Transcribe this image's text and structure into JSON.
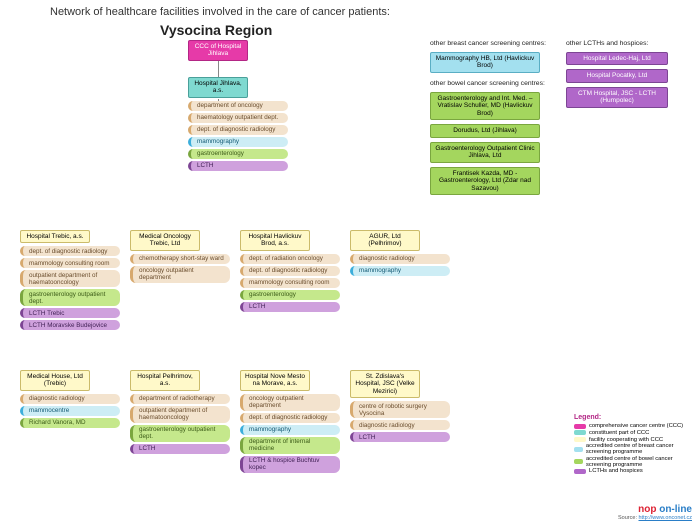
{
  "title": "Network of healthcare facilities involved in the care of cancer patients:",
  "region": "Vysocina Region",
  "colors": {
    "pink": "#e63aa8",
    "teal": "#7fd9d0",
    "yellow": "#fff9c9",
    "tan": "#f3e3ce",
    "blue": "#a3e0ef",
    "green": "#a4d65e",
    "purple": "#b067c9",
    "white": "#ffffff"
  },
  "ccc": {
    "label": "CCC of Hospital Jihlava"
  },
  "hospital_jihlava": {
    "label": "Hospital Jihlava, a.s.",
    "depts": [
      {
        "t": "department of oncology",
        "c": "d-tan"
      },
      {
        "t": "haematology outpatient dept.",
        "c": "d-tan"
      },
      {
        "t": "dept. of diagnostic radiology",
        "c": "d-tan"
      },
      {
        "t": "mammography",
        "c": "d-blue"
      },
      {
        "t": "gastroenterology",
        "c": "d-green"
      },
      {
        "t": "LCTH",
        "c": "d-purple"
      }
    ]
  },
  "row2": [
    {
      "name": "Hospital Trebic, a.s.",
      "c": "yellow",
      "depts": [
        {
          "t": "dept. of diagnostic radiology",
          "c": "d-tan"
        },
        {
          "t": "mammology consulting room",
          "c": "d-tan"
        },
        {
          "t": "outpatient department of haematooncology",
          "c": "d-tan"
        },
        {
          "t": "gastroenterology outpatient dept.",
          "c": "d-green"
        },
        {
          "t": "LCTH Trebic",
          "c": "d-purple"
        },
        {
          "t": "LCTH Moravske Budejovice",
          "c": "d-purple"
        }
      ]
    },
    {
      "name": "Medical Oncology Trebic, Ltd",
      "c": "yellow",
      "depts": [
        {
          "t": "chemotherapy short-stay ward",
          "c": "d-tan"
        },
        {
          "t": "oncology outpatient department",
          "c": "d-tan"
        }
      ]
    },
    {
      "name": "Hospital Havlickuv Brod, a.s.",
      "c": "yellow",
      "depts": [
        {
          "t": "dept. of radiation oncology",
          "c": "d-tan"
        },
        {
          "t": "dept. of diagnostic radiology",
          "c": "d-tan"
        },
        {
          "t": "mammology consulting room",
          "c": "d-tan"
        },
        {
          "t": "gastroenterology",
          "c": "d-green"
        },
        {
          "t": "LCTH",
          "c": "d-purple"
        }
      ]
    },
    {
      "name": "AGUR, Ltd (Pelhrimov)",
      "c": "yellow",
      "depts": [
        {
          "t": "diagnostic radiology",
          "c": "d-tan"
        },
        {
          "t": "mammography",
          "c": "d-blue"
        }
      ]
    }
  ],
  "row3": [
    {
      "name": "Medical House, Ltd (Trebic)",
      "c": "yellow",
      "depts": [
        {
          "t": "diagnostic radiology",
          "c": "d-tan"
        },
        {
          "t": "mammocentre",
          "c": "d-blue"
        },
        {
          "t": "Richard Vanora, MD",
          "c": "d-green"
        }
      ]
    },
    {
      "name": "Hospital Pelhrimov, a.s.",
      "c": "yellow",
      "depts": [
        {
          "t": "department of radiotherapy",
          "c": "d-tan"
        },
        {
          "t": "outpatient department of haematooncology",
          "c": "d-tan"
        },
        {
          "t": "gastroenterology outpatient dept.",
          "c": "d-green"
        },
        {
          "t": "LCTH",
          "c": "d-purple"
        }
      ]
    },
    {
      "name": "Hospital Nove Mesto na Morave, a.s.",
      "c": "yellow",
      "depts": [
        {
          "t": "oncology outpatient department",
          "c": "d-tan"
        },
        {
          "t": "dept. of diagnostic radiology",
          "c": "d-tan"
        },
        {
          "t": "mammography",
          "c": "d-blue"
        },
        {
          "t": "department of internal medicine",
          "c": "d-green"
        },
        {
          "t": "LCTH & hospice Buchtuv kopec",
          "c": "d-purple"
        }
      ]
    },
    {
      "name": "St. Zdislava's Hospital, JSC (Velke Mezirici)",
      "c": "yellow",
      "depts": [
        {
          "t": "centre of robotic surgery Vysocina",
          "c": "d-tan"
        },
        {
          "t": "diagnostic radiology",
          "c": "d-tan"
        },
        {
          "t": "LCTH",
          "c": "d-purple"
        }
      ]
    }
  ],
  "breast_label": "other breast cancer screening centres:",
  "breast": [
    {
      "t": "Mammography HB, Ltd (Havlickuv Brod)",
      "c": "blue"
    }
  ],
  "bowel_label": "other bowel cancer screening centres:",
  "bowel": [
    {
      "t": "Gastroenterology and Int. Med. – Vratislav Schuller, MD (Havlickuv Brod)",
      "c": "green"
    },
    {
      "t": "Dorudus, Ltd (Jihlava)",
      "c": "green"
    },
    {
      "t": "Gastroenterology Outpatient Clinic Jihlava, Ltd",
      "c": "green"
    },
    {
      "t": "Frantisek Kazda, MD - Gastroenterology, Ltd (Zdar nad Sazavou)",
      "c": "green"
    }
  ],
  "lcth_label": "other LCTHs and hospices:",
  "lcth": [
    {
      "t": "Hospital Ledec-Haj, Ltd",
      "c": "purple"
    },
    {
      "t": "Hospital Pocatky, Ltd",
      "c": "purple"
    },
    {
      "t": "CTM Hospital, JSC - LCTH (Humpolec)",
      "c": "purple"
    }
  ],
  "legend": {
    "title": "Legend:",
    "items": [
      {
        "t": "comprehensive cancer centre (CCC)",
        "c": "pink"
      },
      {
        "t": "constituent part of CCC",
        "c": "teal"
      },
      {
        "t": "facility cooperating with CCC",
        "c": "yellow"
      },
      {
        "t": "accredited centre of breast cancer screening programme",
        "c": "blue"
      },
      {
        "t": "accredited centre of bowel cancer screening programme",
        "c": "green"
      },
      {
        "t": "LCTHs and hospices",
        "c": "purple"
      }
    ]
  },
  "logo": {
    "brand1": "nop",
    "brand2": " on-line",
    "source": "Source: ",
    "url": "http://www.onconet.cz"
  }
}
